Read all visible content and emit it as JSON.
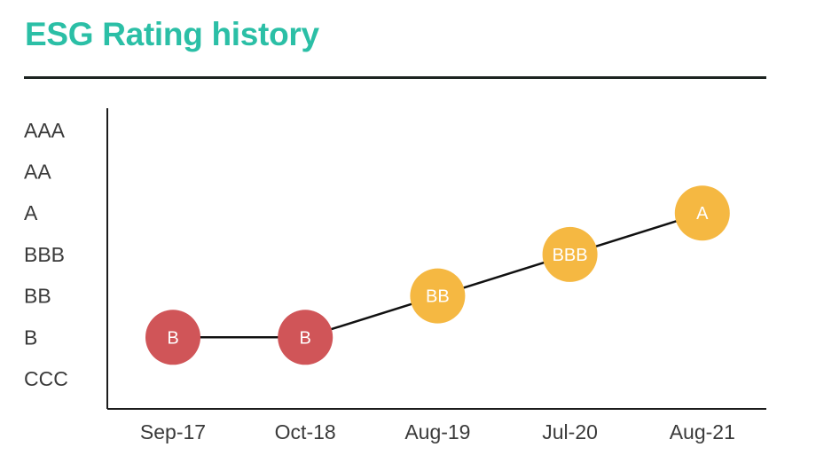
{
  "header": {
    "title": "ESG Rating history"
  },
  "chart_data": {
    "type": "line",
    "title": "ESG Rating history",
    "xlabel": "",
    "ylabel": "",
    "y_categories": [
      "CCC",
      "B",
      "BB",
      "BBB",
      "A",
      "AA",
      "AAA"
    ],
    "x": [
      "Sep-17",
      "Oct-18",
      "Aug-19",
      "Jul-20",
      "Aug-21"
    ],
    "series": [
      {
        "values": [
          "B",
          "B",
          "BB",
          "BBB",
          "A"
        ]
      }
    ],
    "point_labels": [
      "B",
      "B",
      "BB",
      "BBB",
      "A"
    ],
    "point_colors": [
      "#d05558",
      "#d05558",
      "#f5b842",
      "#f5b842",
      "#f5b842"
    ],
    "grid": false,
    "legend": "none"
  },
  "colors": {
    "title": "#2bbfa6",
    "line": "#111111",
    "low_rating": "#d05558",
    "mid_rating": "#f5b842"
  }
}
